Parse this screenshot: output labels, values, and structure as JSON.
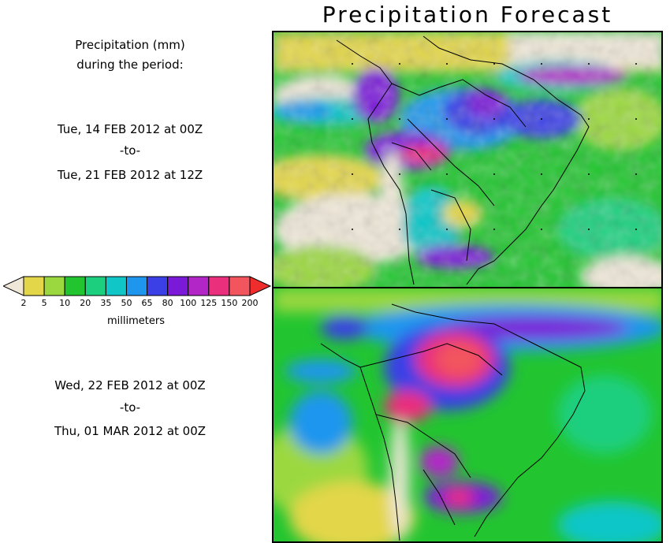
{
  "title": "Precipitation Forecast",
  "legend_heading": [
    "Precipitation (mm)",
    "during the period:"
  ],
  "period1": {
    "start": "Tue, 14 FEB 2012 at 00Z",
    "sep": "-to-",
    "end": "Tue, 21 FEB 2012 at 12Z"
  },
  "period2": {
    "start": "Wed, 22 FEB 2012 at 00Z",
    "sep": "-to-",
    "end": "Thu, 01 MAR 2012 at 00Z"
  },
  "colorbar": {
    "ticks": [
      "2",
      "5",
      "10",
      "20",
      "35",
      "50",
      "65",
      "80",
      "100",
      "125",
      "150",
      "200"
    ],
    "colors": [
      "#efe7d8",
      "#e3d648",
      "#9bd83f",
      "#22c530",
      "#1ccf7e",
      "#11c6c7",
      "#1f96ee",
      "#3a3fe6",
      "#7a1ad8",
      "#b226c8",
      "#ea2f7c",
      "#f2555d",
      "#ef2d2d"
    ],
    "unit": "millimeters"
  }
}
